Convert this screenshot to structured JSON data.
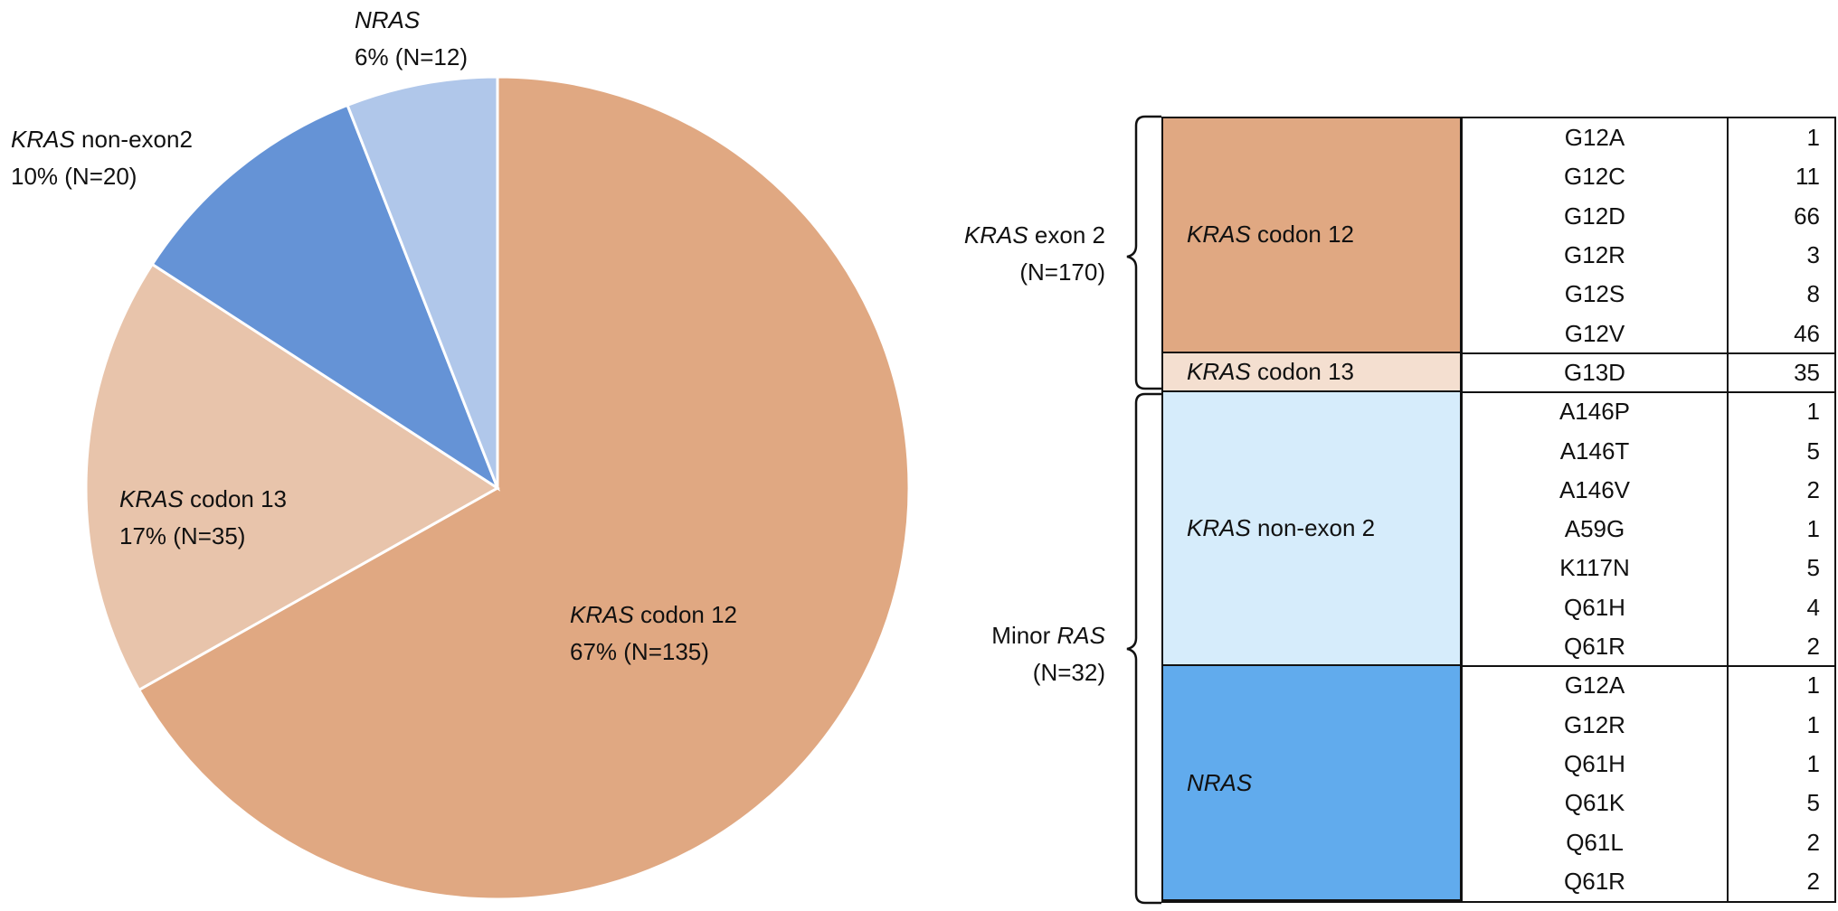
{
  "chart_data": [
    {
      "type": "pie",
      "slices": [
        {
          "gene": "KRAS",
          "label": "codon 12",
          "percent_text": "67% (N=135)",
          "value": 135,
          "color": "#e0a882"
        },
        {
          "gene": "KRAS",
          "label": "codon 13",
          "percent_text": "17% (N=35)",
          "value": 35,
          "color": "#e8c4ab"
        },
        {
          "gene": "KRAS",
          "label": "non-exon2",
          "percent_text": "10% (N=20)",
          "value": 20,
          "color": "#6593d6"
        },
        {
          "gene": "NRAS",
          "label": "",
          "percent_text": "6% (N=12)",
          "value": 12,
          "color": "#b0c7ea"
        }
      ]
    },
    {
      "type": "table",
      "groups": [
        {
          "gene": "KRAS",
          "label": "exon 2",
          "count_text": "(N=170)"
        },
        {
          "gene": "",
          "label": "Minor",
          "gene_suffix": "RAS",
          "count_text": "(N=32)"
        }
      ],
      "categories": [
        {
          "gene": "KRAS",
          "label": "codon 12",
          "color": "#e0a882",
          "mutations": [
            [
              "G12A",
              "1"
            ],
            [
              "G12C",
              "11"
            ],
            [
              "G12D",
              "66"
            ],
            [
              "G12R",
              "3"
            ],
            [
              "G12S",
              "8"
            ],
            [
              "G12V",
              "46"
            ]
          ]
        },
        {
          "gene": "KRAS",
          "label": "codon 13",
          "color": "#f4dfd0",
          "mutations": [
            [
              "G13D",
              "35"
            ]
          ]
        },
        {
          "gene": "KRAS",
          "label": "non-exon 2",
          "color": "#d6ecfb",
          "mutations": [
            [
              "A146P",
              "1"
            ],
            [
              "A146T",
              "5"
            ],
            [
              "A146V",
              "2"
            ],
            [
              "A59G",
              "1"
            ],
            [
              "K117N",
              "5"
            ],
            [
              "Q61H",
              "4"
            ],
            [
              "Q61R",
              "2"
            ]
          ]
        },
        {
          "gene": "NRAS",
          "label": "",
          "color": "#61abed",
          "mutations": [
            [
              "G12A",
              "1"
            ],
            [
              "G12R",
              "1"
            ],
            [
              "Q61H",
              "1"
            ],
            [
              "Q61K",
              "5"
            ],
            [
              "Q61L",
              "2"
            ],
            [
              "Q61R",
              "2"
            ]
          ]
        }
      ]
    }
  ]
}
